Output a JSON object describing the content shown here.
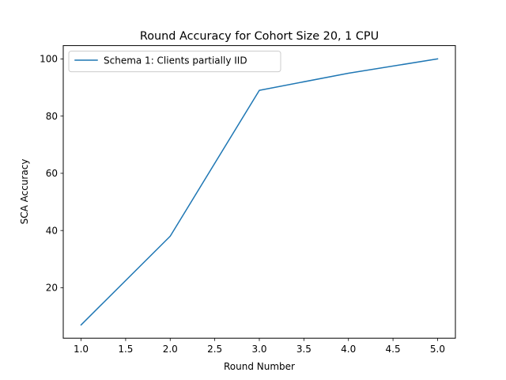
{
  "chart_data": {
    "type": "line",
    "title": "Round Accuracy for Cohort Size 20, 1 CPU",
    "xlabel": "Round Number",
    "ylabel": "SCA Accuracy",
    "xlim": [
      0.8,
      5.2
    ],
    "ylim": [
      2.35,
      104.65
    ],
    "x_ticks": [
      "1.0",
      "1.5",
      "2.0",
      "2.5",
      "3.0",
      "3.5",
      "4.0",
      "4.5",
      "5.0"
    ],
    "y_ticks": [
      "20",
      "40",
      "60",
      "80",
      "100"
    ],
    "grid": false,
    "legend_position": "upper left",
    "series": [
      {
        "name": "Schema 1: Clients partially IID",
        "color": "#1f77b4",
        "x": [
          1.0,
          2.0,
          3.0,
          4.0,
          5.0
        ],
        "y": [
          7.0,
          38.0,
          89.0,
          95.0,
          100.0
        ]
      }
    ]
  }
}
